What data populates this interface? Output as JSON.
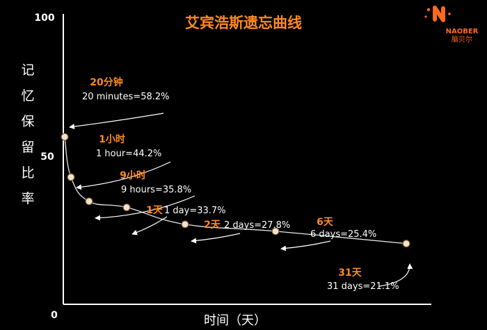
{
  "logo": {
    "brand_en": "NAOBER",
    "brand_cn": "脑贝尔",
    "color": "#ff6a1a"
  },
  "colors": {
    "accent": "#ff8a1e",
    "text": "#ffffff",
    "background": "#000000",
    "point_fill": "#f1e3c9"
  },
  "chart_data": {
    "type": "line",
    "title": "艾宾浩斯遗忘曲线",
    "xlabel": "时间（天）",
    "ylabel": "记忆保留比率",
    "ylim": [
      0,
      100
    ],
    "yticks": [
      "0",
      "50",
      "100"
    ],
    "grid": false,
    "points": [
      {
        "x_days": 0.0139,
        "y": 58.2,
        "label_cn": "20分钟",
        "label_en": "20 minutes=58.2%"
      },
      {
        "x_days": 0.0417,
        "y": 44.2,
        "label_cn": "1小时",
        "label_en": "1 hour=44.2%"
      },
      {
        "x_days": 0.375,
        "y": 35.8,
        "label_cn": "9小时",
        "label_en": "9 hours=35.8%"
      },
      {
        "x_days": 1,
        "y": 33.7,
        "label_cn": "1天",
        "label_en": "1 day=33.7%"
      },
      {
        "x_days": 2,
        "y": 27.8,
        "label_cn": "2天",
        "label_en": "2 days=27.8%"
      },
      {
        "x_days": 6,
        "y": 25.4,
        "label_cn": "6天",
        "label_en": "6 days=25.4%"
      },
      {
        "x_days": 31,
        "y": 21.1,
        "label_cn": "31天",
        "label_en": "31 days=21.1%"
      }
    ]
  }
}
